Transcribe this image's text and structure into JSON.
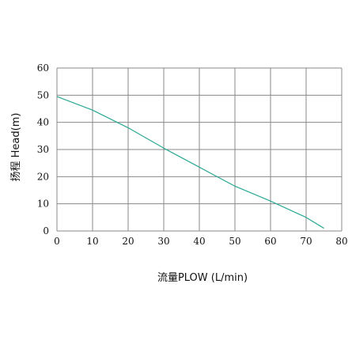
{
  "chart_data": {
    "type": "line",
    "title": "",
    "xlabel": "流量PLOW (L/min)",
    "ylabel": "扬程 Head(m)",
    "xlim": [
      0,
      80
    ],
    "ylim": [
      0,
      60
    ],
    "xticks": [
      0,
      10,
      20,
      30,
      40,
      50,
      60,
      70,
      80
    ],
    "yticks": [
      0,
      10,
      20,
      30,
      40,
      50,
      60
    ],
    "grid": true,
    "legend": "none",
    "line_color": "#2aa894",
    "grid_color": "#888888",
    "series": [
      {
        "x": [
          0,
          10,
          20,
          30,
          40,
          50,
          60,
          70,
          75
        ],
        "values": [
          49.5,
          44.5,
          38,
          30.5,
          23.5,
          16.5,
          11,
          5,
          1
        ]
      }
    ]
  }
}
